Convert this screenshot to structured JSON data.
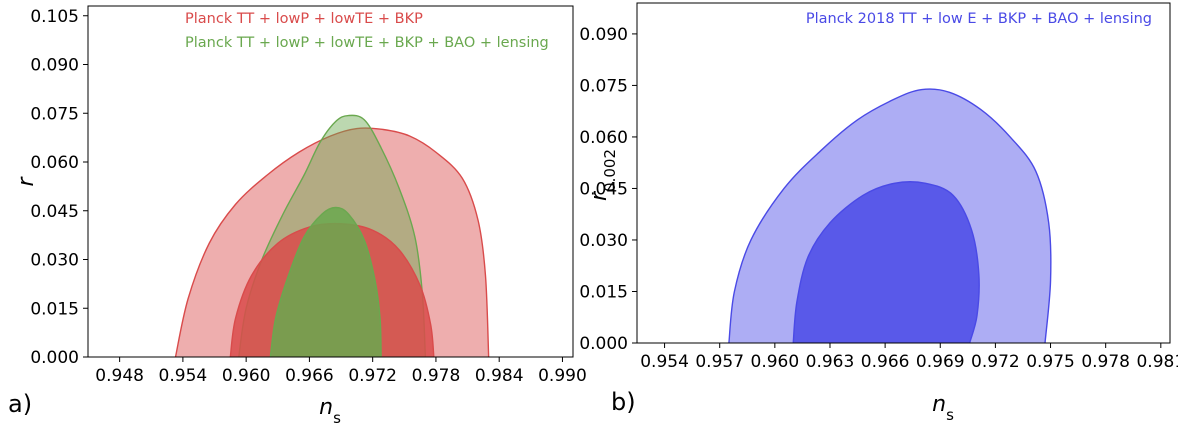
{
  "chart_data": [
    {
      "type": "contour",
      "panel_label": "a)",
      "xlabel": "n_s",
      "ylabel": "r",
      "xlim": [
        0.945,
        0.991
      ],
      "ylim": [
        0.0,
        0.108
      ],
      "xticks": [
        "0.948",
        "0.954",
        "0.960",
        "0.966",
        "0.972",
        "0.978",
        "0.984",
        "0.990"
      ],
      "yticks": [
        "0.000",
        "0.015",
        "0.030",
        "0.045",
        "0.060",
        "0.075",
        "0.090",
        "0.105"
      ],
      "grid": false,
      "legend_position": "top-center",
      "series": [
        {
          "name": "Planck TT + lowP + lowTE + BKP",
          "color": "#d94b4b",
          "contours": [
            {
              "level": "95%",
              "points": [
                [
                  0.9533,
                  0.0
                ],
                [
                  0.9545,
                  0.018
                ],
                [
                  0.9565,
                  0.035
                ],
                [
                  0.959,
                  0.047
                ],
                [
                  0.962,
                  0.056
                ],
                [
                  0.965,
                  0.063
                ],
                [
                  0.968,
                  0.068
                ],
                [
                  0.9705,
                  0.0703
                ],
                [
                  0.973,
                  0.07
                ],
                [
                  0.9755,
                  0.068
                ],
                [
                  0.978,
                  0.063
                ],
                [
                  0.9805,
                  0.055
                ],
                [
                  0.982,
                  0.042
                ],
                [
                  0.9827,
                  0.025
                ],
                [
                  0.983,
                  0.0
                ]
              ]
            },
            {
              "level": "68%",
              "points": [
                [
                  0.9585,
                  0.0
                ],
                [
                  0.959,
                  0.012
                ],
                [
                  0.9605,
                  0.025
                ],
                [
                  0.963,
                  0.035
                ],
                [
                  0.966,
                  0.04
                ],
                [
                  0.969,
                  0.041
                ],
                [
                  0.972,
                  0.039
                ],
                [
                  0.9745,
                  0.033
                ],
                [
                  0.9765,
                  0.022
                ],
                [
                  0.9775,
                  0.01
                ],
                [
                  0.9778,
                  0.0
                ]
              ]
            }
          ]
        },
        {
          "name": "Planck TT + lowP + lowTE + BKP + BAO + lensing",
          "color": "#6aa84f",
          "contours": [
            {
              "level": "95%",
              "points": [
                [
                  0.9593,
                  0.0
                ],
                [
                  0.96,
                  0.015
                ],
                [
                  0.9615,
                  0.03
                ],
                [
                  0.9635,
                  0.044
                ],
                [
                  0.9655,
                  0.056
                ],
                [
                  0.967,
                  0.066
                ],
                [
                  0.9685,
                  0.0725
                ],
                [
                  0.9697,
                  0.0743
                ],
                [
                  0.9712,
                  0.073
                ],
                [
                  0.9727,
                  0.065
                ],
                [
                  0.9745,
                  0.052
                ],
                [
                  0.976,
                  0.037
                ],
                [
                  0.9767,
                  0.02
                ],
                [
                  0.977,
                  0.0
                ]
              ]
            },
            {
              "level": "68%",
              "points": [
                [
                  0.9623,
                  0.0
                ],
                [
                  0.9628,
                  0.012
                ],
                [
                  0.964,
                  0.025
                ],
                [
                  0.9655,
                  0.037
                ],
                [
                  0.9672,
                  0.044
                ],
                [
                  0.9685,
                  0.046
                ],
                [
                  0.9697,
                  0.044
                ],
                [
                  0.9712,
                  0.036
                ],
                [
                  0.9722,
                  0.024
                ],
                [
                  0.9727,
                  0.012
                ],
                [
                  0.9728,
                  0.0
                ]
              ]
            }
          ]
        }
      ]
    },
    {
      "type": "contour",
      "panel_label": "b)",
      "xlabel": "n_s",
      "ylabel": "r_{0.002}",
      "xlim": [
        0.9525,
        0.9815
      ],
      "ylim": [
        0.0,
        0.099
      ],
      "xticks": [
        "0.954",
        "0.957",
        "0.960",
        "0.963",
        "0.966",
        "0.969",
        "0.972",
        "0.975",
        "0.978",
        "0.981"
      ],
      "yticks": [
        "0.000",
        "0.015",
        "0.030",
        "0.045",
        "0.060",
        "0.075",
        "0.090"
      ],
      "grid": false,
      "legend_position": "top-right",
      "series": [
        {
          "name": "Planck 2018 TT + low E + BKP + BAO + lensing",
          "color": "#4a4ae6",
          "contours": [
            {
              "level": "95%",
              "points": [
                [
                  0.9575,
                  0.0
                ],
                [
                  0.9578,
                  0.015
                ],
                [
                  0.9587,
                  0.03
                ],
                [
                  0.9605,
                  0.045
                ],
                [
                  0.9625,
                  0.056
                ],
                [
                  0.9645,
                  0.065
                ],
                [
                  0.9665,
                  0.071
                ],
                [
                  0.968,
                  0.0738
                ],
                [
                  0.9695,
                  0.073
                ],
                [
                  0.9712,
                  0.068
                ],
                [
                  0.9728,
                  0.06
                ],
                [
                  0.9742,
                  0.05
                ],
                [
                  0.9749,
                  0.035
                ],
                [
                  0.975,
                  0.018
                ],
                [
                  0.9747,
                  0.0
                ]
              ]
            },
            {
              "level": "68%",
              "points": [
                [
                  0.961,
                  0.0
                ],
                [
                  0.9612,
                  0.012
                ],
                [
                  0.9618,
                  0.025
                ],
                [
                  0.963,
                  0.035
                ],
                [
                  0.9648,
                  0.043
                ],
                [
                  0.9665,
                  0.0465
                ],
                [
                  0.9682,
                  0.0465
                ],
                [
                  0.9697,
                  0.043
                ],
                [
                  0.9707,
                  0.033
                ],
                [
                  0.9711,
                  0.02
                ],
                [
                  0.971,
                  0.008
                ],
                [
                  0.9706,
                  0.0
                ]
              ]
            }
          ]
        }
      ]
    }
  ]
}
